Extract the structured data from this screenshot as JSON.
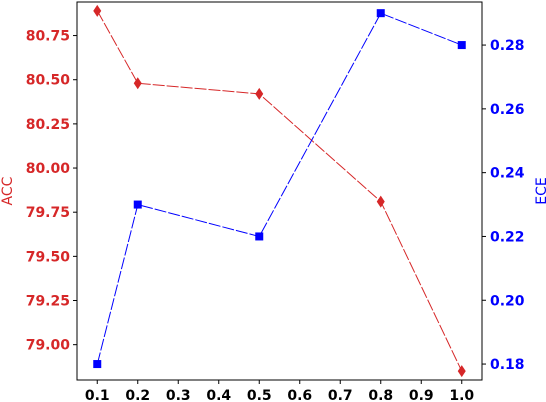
{
  "chart_data": {
    "type": "line",
    "title": "",
    "x": [
      0.1,
      0.2,
      0.5,
      0.8,
      1.0
    ],
    "x_ticks": [
      "0.1",
      "0.2",
      "0.3",
      "0.4",
      "0.5",
      "0.6",
      "0.7",
      "0.8",
      "0.9",
      "1.0"
    ],
    "xlim": [
      0.05,
      1.05
    ],
    "series": [
      {
        "axis": "left",
        "color": "#d62728",
        "marker": "diamond",
        "values": [
          80.89,
          80.48,
          80.42,
          79.81,
          78.85
        ]
      },
      {
        "axis": "right",
        "color": "#0000ff",
        "marker": "square",
        "values": [
          0.18,
          0.23,
          0.22,
          0.29,
          0.28
        ]
      }
    ],
    "y_left": {
      "label": "ACC",
      "color": "#d62728",
      "ylim": [
        78.8,
        80.94
      ],
      "ticks": [
        "79.00",
        "79.25",
        "79.50",
        "79.75",
        "80.00",
        "80.25",
        "80.50",
        "80.75"
      ]
    },
    "y_right": {
      "label": "ECE",
      "color": "#0000ff",
      "ylim": [
        0.175,
        0.2935
      ],
      "ticks": [
        "0.18",
        "0.20",
        "0.22",
        "0.24",
        "0.26",
        "0.28"
      ]
    },
    "grid": false,
    "legend": "none"
  }
}
